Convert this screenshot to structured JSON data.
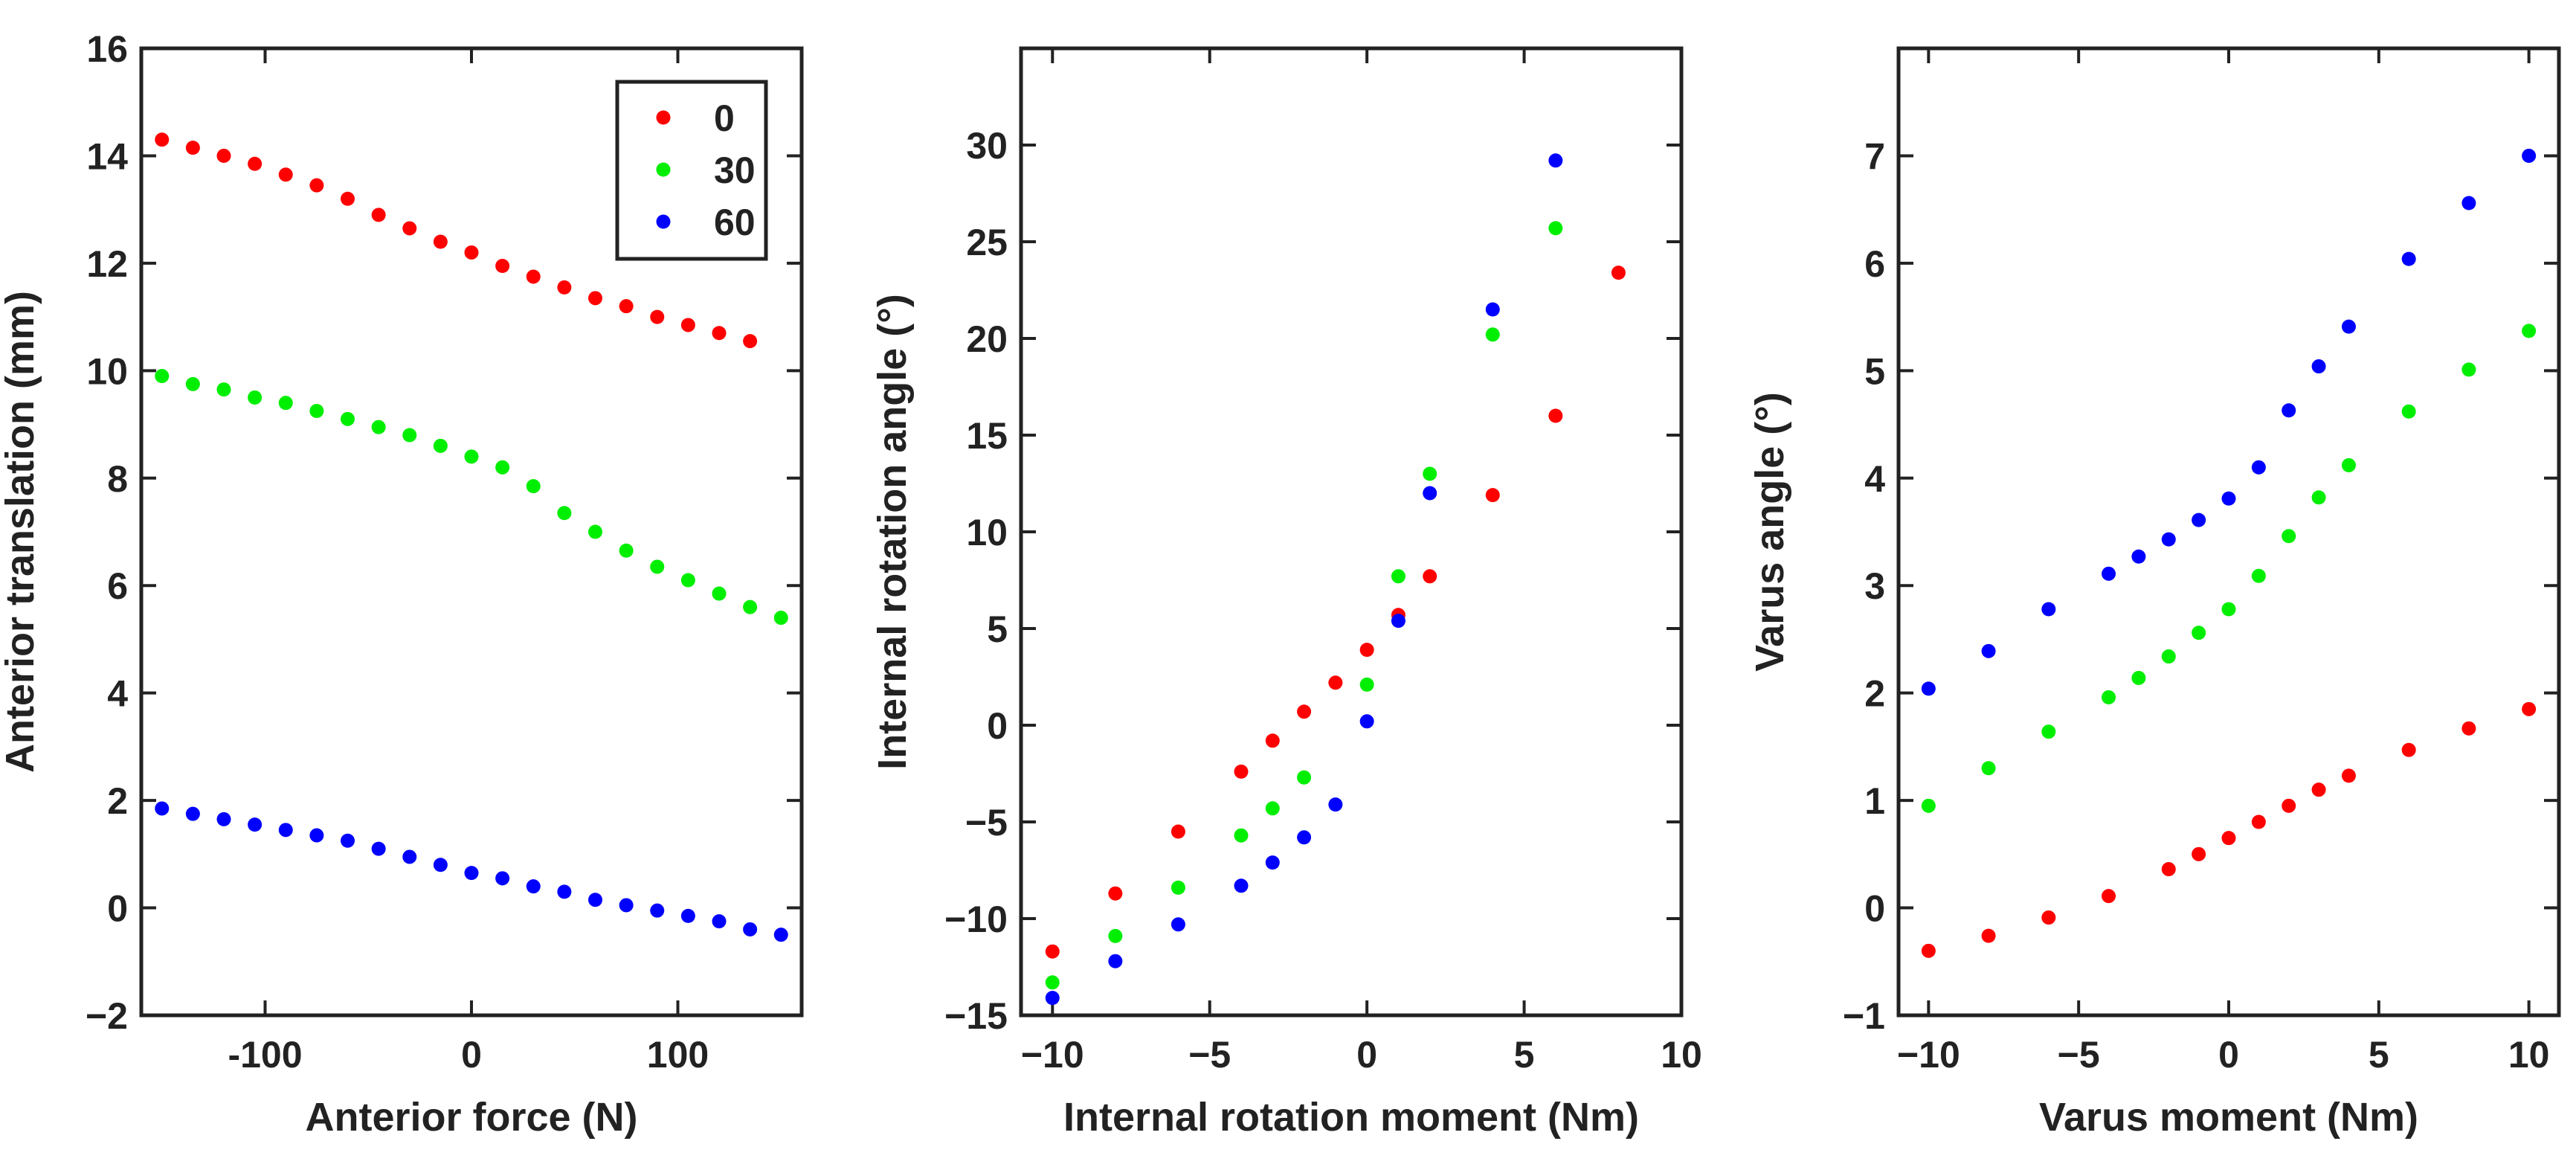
{
  "colors": {
    "red": "#ff0000",
    "green": "#00ee00",
    "blue": "#0000ff",
    "axis": "#222222"
  },
  "chart_data": [
    {
      "type": "scatter",
      "xlabel": "Anterior force (N)",
      "ylabel": "Anterior translation (mm)",
      "xlim": [
        -160,
        160
      ],
      "ylim": [
        -2,
        16
      ],
      "xticks": [
        -100,
        0,
        100
      ],
      "xtick_labels": [
        "-100",
        "0",
        "100"
      ],
      "yticks": [
        -2,
        0,
        2,
        4,
        6,
        8,
        10,
        12,
        14,
        16
      ],
      "ytick_labels": [
        "−2",
        "0",
        "2",
        "4",
        "6",
        "8",
        "10",
        "12",
        "14",
        "16"
      ],
      "legend": {
        "placement": "top-right",
        "entries": [
          "0",
          "30",
          "60"
        ]
      },
      "series": [
        {
          "name": "0",
          "color": "#ff0000",
          "x": [
            -150,
            -135,
            -120,
            -105,
            -90,
            -75,
            -60,
            -45,
            -30,
            -15,
            0,
            15,
            30,
            45,
            60,
            75,
            90,
            105,
            120,
            135
          ],
          "y": [
            14.3,
            14.15,
            14.0,
            13.85,
            13.65,
            13.45,
            13.2,
            12.9,
            12.65,
            12.4,
            12.2,
            11.95,
            11.75,
            11.55,
            11.35,
            11.2,
            11.0,
            10.85,
            10.7,
            10.55
          ]
        },
        {
          "name": "30",
          "color": "#00ee00",
          "x": [
            -150,
            -135,
            -120,
            -105,
            -90,
            -75,
            -60,
            -45,
            -30,
            -15,
            0,
            15,
            30,
            45,
            60,
            75,
            90,
            105,
            120,
            135,
            150
          ],
          "y": [
            9.9,
            9.75,
            9.65,
            9.5,
            9.4,
            9.25,
            9.1,
            8.95,
            8.8,
            8.6,
            8.4,
            8.2,
            7.85,
            7.35,
            7.0,
            6.65,
            6.35,
            6.1,
            5.85,
            5.6,
            5.4
          ]
        },
        {
          "name": "60",
          "color": "#0000ff",
          "x": [
            -150,
            -135,
            -120,
            -105,
            -90,
            -75,
            -60,
            -45,
            -30,
            -15,
            0,
            15,
            30,
            45,
            60,
            75,
            90,
            105,
            120,
            135,
            150
          ],
          "y": [
            1.85,
            1.75,
            1.65,
            1.55,
            1.45,
            1.35,
            1.25,
            1.1,
            0.95,
            0.8,
            0.65,
            0.55,
            0.4,
            0.3,
            0.15,
            0.05,
            -0.05,
            -0.15,
            -0.25,
            -0.4,
            -0.5
          ]
        }
      ]
    },
    {
      "type": "scatter",
      "xlabel": "Internal rotation moment (Nm)",
      "ylabel": "Internal rotation angle (°)",
      "xlim": [
        -11,
        10
      ],
      "ylim": [
        -15,
        35
      ],
      "xticks": [
        -10,
        -5,
        0,
        5,
        10
      ],
      "xtick_labels": [
        "−10",
        "−5",
        "0",
        "5",
        "10"
      ],
      "yticks": [
        -15,
        -10,
        -5,
        0,
        5,
        10,
        15,
        20,
        25,
        30
      ],
      "ytick_labels": [
        "−15",
        "−10",
        "−5",
        "0",
        "5",
        "10",
        "15",
        "20",
        "25",
        "30"
      ],
      "series": [
        {
          "name": "0",
          "color": "#ff0000",
          "x": [
            -10,
            -8,
            -6,
            -4,
            -3,
            -2,
            -1,
            0,
            1,
            2,
            4,
            6,
            8
          ],
          "y": [
            -11.7,
            -8.7,
            -5.5,
            -2.4,
            -0.8,
            0.7,
            2.2,
            3.9,
            5.7,
            7.7,
            11.9,
            16.0,
            23.4
          ]
        },
        {
          "name": "30",
          "color": "#00ee00",
          "x": [
            -10,
            -8,
            -6,
            -4,
            -3,
            -2,
            0,
            1,
            2,
            4,
            6
          ],
          "y": [
            -13.3,
            -10.9,
            -8.4,
            -5.7,
            -4.3,
            -2.7,
            2.1,
            7.7,
            13.0,
            20.2,
            25.7
          ]
        },
        {
          "name": "60",
          "color": "#0000ff",
          "x": [
            -10,
            -8,
            -6,
            -4,
            -3,
            -2,
            -1,
            0,
            1,
            2,
            4,
            6
          ],
          "y": [
            -14.1,
            -12.2,
            -10.3,
            -8.3,
            -7.1,
            -5.8,
            -4.1,
            0.2,
            5.4,
            12.0,
            21.5,
            29.2
          ]
        }
      ]
    },
    {
      "type": "scatter",
      "xlabel": "Varus moment (Nm)",
      "ylabel": "Varus angle (°)",
      "xlim": [
        -11,
        11
      ],
      "ylim": [
        -1,
        8
      ],
      "xticks": [
        -10,
        -5,
        0,
        5,
        10
      ],
      "xtick_labels": [
        "−10",
        "−5",
        "0",
        "5",
        "10"
      ],
      "yticks": [
        -1,
        0,
        1,
        2,
        3,
        4,
        5,
        6,
        7
      ],
      "ytick_labels": [
        "−1",
        "0",
        "1",
        "2",
        "3",
        "4",
        "5",
        "6",
        "7"
      ],
      "series": [
        {
          "name": "0",
          "color": "#ff0000",
          "x": [
            -10,
            -8,
            -6,
            -4,
            -2,
            -1,
            0,
            1,
            2,
            3,
            4,
            6,
            8,
            10
          ],
          "y": [
            -0.4,
            -0.26,
            -0.09,
            0.11,
            0.36,
            0.5,
            0.65,
            0.8,
            0.95,
            1.1,
            1.23,
            1.47,
            1.67,
            1.85
          ]
        },
        {
          "name": "30",
          "color": "#00ee00",
          "x": [
            -10,
            -8,
            -6,
            -4,
            -3,
            -2,
            -1,
            0,
            1,
            2,
            3,
            4,
            6,
            8,
            10
          ],
          "y": [
            0.95,
            1.3,
            1.64,
            1.96,
            2.14,
            2.34,
            2.56,
            2.78,
            3.09,
            3.46,
            3.82,
            4.12,
            4.62,
            5.01,
            5.37
          ]
        },
        {
          "name": "60",
          "color": "#0000ff",
          "x": [
            -10,
            -8,
            -6,
            -4,
            -3,
            -2,
            -1,
            0,
            1,
            2,
            3,
            4,
            6,
            8,
            10
          ],
          "y": [
            2.04,
            2.39,
            2.78,
            3.11,
            3.27,
            3.43,
            3.61,
            3.81,
            4.1,
            4.63,
            5.04,
            5.41,
            6.04,
            6.56,
            7.0
          ]
        }
      ]
    }
  ]
}
